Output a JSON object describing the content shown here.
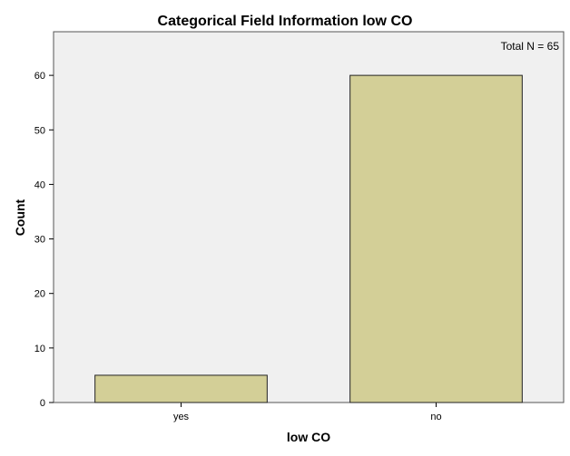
{
  "chart_data": {
    "type": "bar",
    "title": "Categorical Field Information low CO",
    "xlabel": "low CO",
    "ylabel": "Count",
    "categories": [
      "yes",
      "no"
    ],
    "values": [
      5,
      60
    ],
    "ylim": [
      0,
      68
    ],
    "yticks": [
      0,
      10,
      20,
      30,
      40,
      50,
      60
    ],
    "annotation": "Total N =  65",
    "grid": false,
    "colors": {
      "bar_fill": "#d3cf97",
      "bar_stroke": "#222222",
      "plot_background": "#f0f0f0",
      "plot_border": "#555555"
    }
  }
}
